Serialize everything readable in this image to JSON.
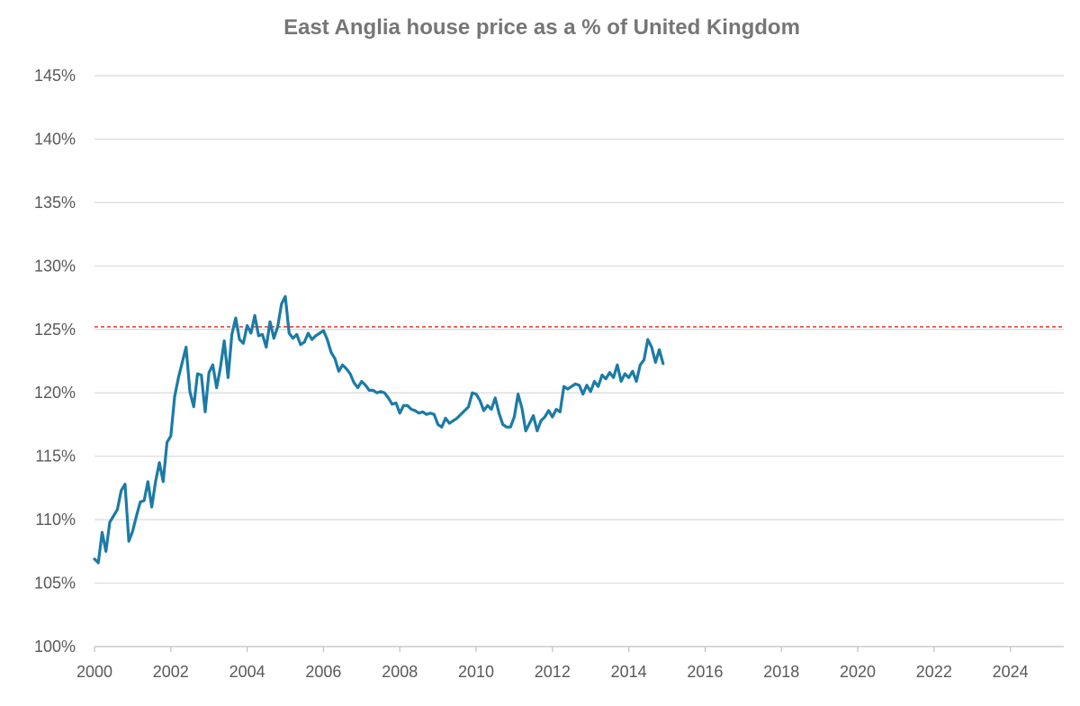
{
  "chart_data": {
    "type": "line",
    "title": "East Anglia house price as a % of United Kingdom",
    "xlabel": "",
    "ylabel": "",
    "xlim": [
      2000,
      2025.4
    ],
    "ylim": [
      100,
      145
    ],
    "x_ticks": [
      2000,
      2002,
      2004,
      2006,
      2008,
      2010,
      2012,
      2014,
      2016,
      2018,
      2020,
      2022,
      2024
    ],
    "x_tick_labels": [
      "2000",
      "2002",
      "2004",
      "2006",
      "2008",
      "2010",
      "2012",
      "2014",
      "2016",
      "2018",
      "2020",
      "2022",
      "2024"
    ],
    "y_ticks": [
      100,
      105,
      110,
      115,
      120,
      125,
      130,
      135,
      140,
      145
    ],
    "y_tick_labels": [
      "100%",
      "105%",
      "110%",
      "115%",
      "120%",
      "125%",
      "130%",
      "135%",
      "140%",
      "145%"
    ],
    "grid": "horizontal",
    "legend": "none",
    "reference_line": {
      "y": 125.2,
      "color": "#e0241b",
      "style": "dashed"
    },
    "series": [
      {
        "color": "#1b7ba6",
        "points": [
          [
            2000.0,
            106.9
          ],
          [
            2000.1,
            106.6
          ],
          [
            2000.2,
            109.0
          ],
          [
            2000.3,
            107.5
          ],
          [
            2000.4,
            109.8
          ],
          [
            2000.5,
            110.3
          ],
          [
            2000.6,
            110.8
          ],
          [
            2000.7,
            112.3
          ],
          [
            2000.8,
            112.8
          ],
          [
            2000.9,
            108.3
          ],
          [
            2001.0,
            109.1
          ],
          [
            2001.1,
            110.3
          ],
          [
            2001.2,
            111.4
          ],
          [
            2001.3,
            111.5
          ],
          [
            2001.4,
            113.0
          ],
          [
            2001.5,
            111.0
          ],
          [
            2001.6,
            113.0
          ],
          [
            2001.7,
            114.5
          ],
          [
            2001.8,
            113.0
          ],
          [
            2001.9,
            116.1
          ],
          [
            2002.0,
            116.6
          ],
          [
            2002.1,
            119.7
          ],
          [
            2002.2,
            121.2
          ],
          [
            2002.3,
            122.4
          ],
          [
            2002.4,
            123.6
          ],
          [
            2002.5,
            120.1
          ],
          [
            2002.6,
            118.9
          ],
          [
            2002.7,
            121.5
          ],
          [
            2002.8,
            121.4
          ],
          [
            2002.9,
            118.5
          ],
          [
            2003.0,
            121.6
          ],
          [
            2003.1,
            122.2
          ],
          [
            2003.2,
            120.4
          ],
          [
            2003.3,
            122.0
          ],
          [
            2003.4,
            124.1
          ],
          [
            2003.5,
            121.2
          ],
          [
            2003.6,
            124.6
          ],
          [
            2003.7,
            125.9
          ],
          [
            2003.8,
            124.2
          ],
          [
            2003.9,
            123.9
          ],
          [
            2004.0,
            125.3
          ],
          [
            2004.1,
            124.7
          ],
          [
            2004.2,
            126.1
          ],
          [
            2004.3,
            124.5
          ],
          [
            2004.4,
            124.6
          ],
          [
            2004.5,
            123.6
          ],
          [
            2004.6,
            125.6
          ],
          [
            2004.7,
            124.3
          ],
          [
            2004.8,
            125.2
          ],
          [
            2004.9,
            127.0
          ],
          [
            2005.0,
            127.6
          ],
          [
            2005.1,
            124.7
          ],
          [
            2005.2,
            124.3
          ],
          [
            2005.3,
            124.6
          ],
          [
            2005.4,
            123.8
          ],
          [
            2005.5,
            124.0
          ],
          [
            2005.6,
            124.7
          ],
          [
            2005.7,
            124.2
          ],
          [
            2005.8,
            124.5
          ],
          [
            2005.9,
            124.7
          ],
          [
            2006.0,
            124.9
          ],
          [
            2006.1,
            124.2
          ],
          [
            2006.2,
            123.2
          ],
          [
            2006.3,
            122.7
          ],
          [
            2006.4,
            121.7
          ],
          [
            2006.5,
            122.2
          ],
          [
            2006.6,
            121.9
          ],
          [
            2006.7,
            121.5
          ],
          [
            2006.8,
            120.8
          ],
          [
            2006.9,
            120.4
          ],
          [
            2007.0,
            120.9
          ],
          [
            2007.1,
            120.6
          ],
          [
            2007.2,
            120.2
          ],
          [
            2007.3,
            120.2
          ],
          [
            2007.4,
            120.0
          ],
          [
            2007.5,
            120.1
          ],
          [
            2007.6,
            120.0
          ],
          [
            2007.7,
            119.6
          ],
          [
            2007.8,
            119.1
          ],
          [
            2007.9,
            119.2
          ],
          [
            2008.0,
            118.4
          ],
          [
            2008.1,
            119.0
          ],
          [
            2008.2,
            119.0
          ],
          [
            2008.3,
            118.7
          ],
          [
            2008.4,
            118.6
          ],
          [
            2008.5,
            118.4
          ],
          [
            2008.6,
            118.5
          ],
          [
            2008.7,
            118.3
          ],
          [
            2008.8,
            118.4
          ],
          [
            2008.9,
            118.3
          ],
          [
            2009.0,
            117.5
          ],
          [
            2009.1,
            117.3
          ],
          [
            2009.2,
            118.0
          ],
          [
            2009.3,
            117.6
          ],
          [
            2009.4,
            117.8
          ],
          [
            2009.5,
            118.0
          ],
          [
            2009.6,
            118.3
          ],
          [
            2009.7,
            118.6
          ],
          [
            2009.8,
            118.9
          ],
          [
            2009.9,
            120.0
          ],
          [
            2010.0,
            119.9
          ],
          [
            2010.1,
            119.4
          ],
          [
            2010.2,
            118.6
          ],
          [
            2010.3,
            119.0
          ],
          [
            2010.4,
            118.7
          ],
          [
            2010.5,
            119.6
          ],
          [
            2010.6,
            118.4
          ],
          [
            2010.7,
            117.5
          ],
          [
            2010.8,
            117.3
          ],
          [
            2010.9,
            117.3
          ],
          [
            2011.0,
            118.1
          ],
          [
            2011.1,
            119.9
          ],
          [
            2011.2,
            118.8
          ],
          [
            2011.3,
            117.0
          ],
          [
            2011.4,
            117.6
          ],
          [
            2011.5,
            118.2
          ],
          [
            2011.6,
            117.0
          ],
          [
            2011.7,
            117.8
          ],
          [
            2011.8,
            118.1
          ],
          [
            2011.9,
            118.6
          ],
          [
            2012.0,
            118.1
          ],
          [
            2012.1,
            118.7
          ],
          [
            2012.2,
            118.5
          ],
          [
            2012.3,
            120.5
          ],
          [
            2012.4,
            120.3
          ],
          [
            2012.5,
            120.5
          ],
          [
            2012.6,
            120.7
          ],
          [
            2012.7,
            120.6
          ],
          [
            2012.8,
            119.9
          ],
          [
            2012.9,
            120.6
          ],
          [
            2013.0,
            120.1
          ],
          [
            2013.1,
            120.9
          ],
          [
            2013.2,
            120.5
          ],
          [
            2013.3,
            121.4
          ],
          [
            2013.4,
            121.1
          ],
          [
            2013.5,
            121.6
          ],
          [
            2013.6,
            121.2
          ],
          [
            2013.7,
            122.2
          ],
          [
            2013.8,
            120.9
          ],
          [
            2013.9,
            121.5
          ],
          [
            2014.0,
            121.2
          ],
          [
            2014.1,
            121.7
          ],
          [
            2014.2,
            120.9
          ],
          [
            2014.3,
            122.2
          ],
          [
            2014.4,
            122.6
          ],
          [
            2014.5,
            124.2
          ],
          [
            2014.6,
            123.6
          ],
          [
            2014.7,
            122.4
          ],
          [
            2014.8,
            123.4
          ],
          [
            2014.9,
            122.3
          ]
        ]
      }
    ]
  }
}
